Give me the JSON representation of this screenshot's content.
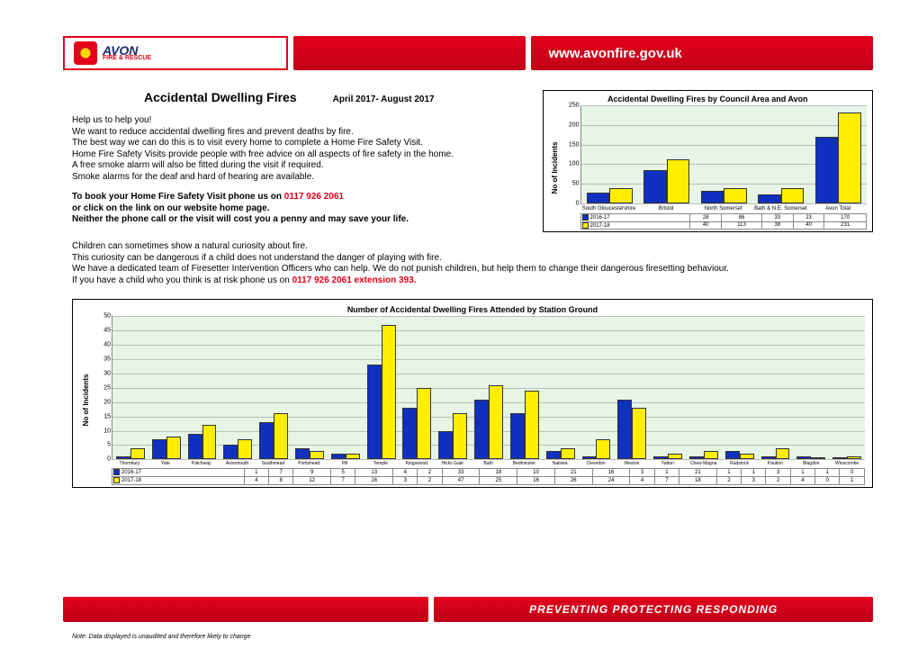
{
  "header": {
    "logo_main": "AVON",
    "logo_sub": "FIRE & RESCUE",
    "url": "www.avonfire.gov.uk"
  },
  "title": "Accidental Dwelling Fires",
  "subtitle": "April 2017- August 2017",
  "body": {
    "l1": "Help us to help you!",
    "l2": "We want to reduce accidental dwelling fires and prevent deaths by fire.",
    "l3": "The best way we can do this is to visit every home to complete a Home Fire Safety Visit.",
    "l4": "Home Fire Safety Visits provide people with free advice on all aspects of fire safety in the home.",
    "l5": "A free smoke alarm will also be fitted during the visit if required.",
    "l6": "Smoke alarms for the deaf and hard of hearing are available.",
    "l7a": "To book your Home Fire Safety Visit phone us on ",
    "l7b": "0117 926 2061",
    "l8": "or click on the link on our website home page.",
    "l9": "Neither the phone call or the visit will cost you a penny and may save your life.",
    "l10": "Children can sometimes show a natural curiosity about fire.",
    "l11": "This curiosity can be dangerous if a child does not understand the danger of playing with fire.",
    "l12": "We have a dedicated team of Firesetter Intervention Officers who can help. We do not punish children, but help them to change their dangerous firesetting behaviour.",
    "l13a": "If you have a child who you think is at risk phone us on ",
    "l13b": "0117 926 2061 extension 393."
  },
  "chart1": {
    "type": "bar",
    "title": "Accidental Dwelling Fires by Council Area and Avon",
    "ylabel": "No of Incidents",
    "ylim": [
      0,
      250
    ],
    "ytick_step": 50,
    "categories": [
      "South Gloucestershire",
      "Bristol",
      "North Somerset",
      "Bath & N.E. Somerset",
      "Avon Total"
    ],
    "series": [
      {
        "name": "2016-17",
        "color": "#1030c0",
        "values": [
          28,
          86,
          33,
          23,
          170
        ]
      },
      {
        "name": "2017-18",
        "color": "#ffee00",
        "values": [
          40,
          113,
          38,
          40,
          231
        ]
      }
    ],
    "background": "#e6f5e6",
    "grid_color": "#bbbbbb"
  },
  "chart2": {
    "type": "bar",
    "title": "Number of Accidental Dwelling Fires Attended by Station Ground",
    "ylabel": "No of Incidents",
    "ylim": [
      0,
      50
    ],
    "ytick_step": 5,
    "categories": [
      "Thornbury",
      "Yate",
      "Patchway",
      "Avonmouth",
      "Southmead",
      "Portishead",
      "Pill",
      "Temple",
      "Kingswood",
      "Hicks Gate",
      "Bath",
      "Bedminster",
      "Nailsea",
      "Clevedon",
      "Weston",
      "Yatton",
      "Chew Magna",
      "Radstock",
      "Paulton",
      "Blagdon",
      "Winscombe"
    ],
    "series": [
      {
        "name": "2016-17",
        "color": "#1030c0",
        "values": [
          1,
          7,
          9,
          5,
          13,
          4,
          2,
          33,
          18,
          10,
          21,
          16,
          3,
          1,
          21,
          1,
          1,
          3,
          1,
          1,
          0
        ]
      },
      {
        "name": "2017-18",
        "color": "#ffee00",
        "values": [
          4,
          8,
          12,
          7,
          16,
          3,
          2,
          47,
          25,
          16,
          26,
          24,
          4,
          7,
          18,
          2,
          3,
          2,
          4,
          0,
          1
        ]
      }
    ],
    "background": "#e6f5e6",
    "grid_color": "#bbbbbb"
  },
  "footer": {
    "slogan": "PREVENTING PROTECTING RESPONDING"
  },
  "note": "Note: Data displayed is unaudited and therefore likely to change"
}
